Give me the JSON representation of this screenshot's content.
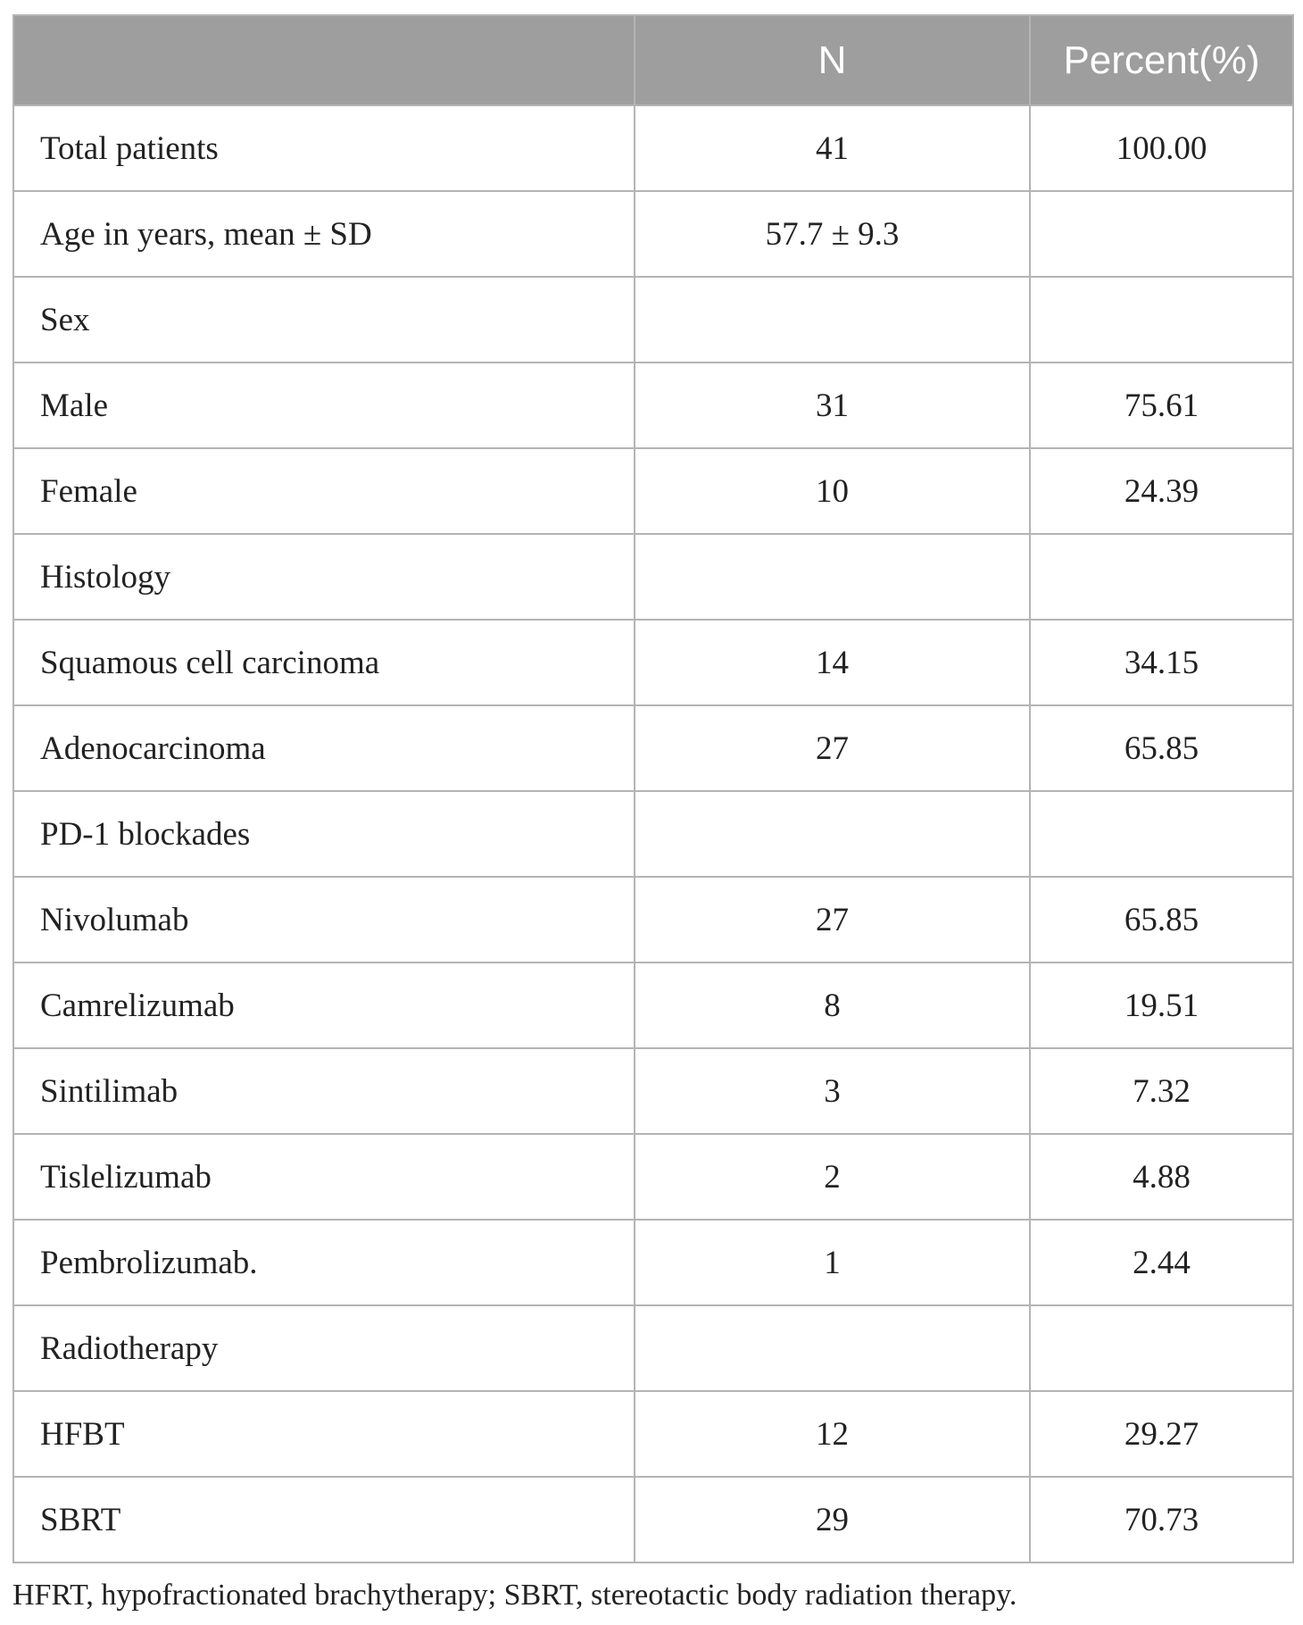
{
  "table": {
    "headers": [
      "",
      "N",
      "Percent(%)"
    ],
    "rows": [
      {
        "label": "Total patients",
        "n": "41",
        "percent": "100.00"
      },
      {
        "label": "Age in years, mean ± SD",
        "n": "57.7 ± 9.3",
        "percent": ""
      },
      {
        "label": "Sex",
        "n": "",
        "percent": ""
      },
      {
        "label": "Male",
        "n": "31",
        "percent": "75.61"
      },
      {
        "label": "Female",
        "n": "10",
        "percent": "24.39"
      },
      {
        "label": "Histology",
        "n": "",
        "percent": ""
      },
      {
        "label": "Squamous cell carcinoma",
        "n": "14",
        "percent": "34.15"
      },
      {
        "label": "Adenocarcinoma",
        "n": "27",
        "percent": "65.85"
      },
      {
        "label": "PD-1 blockades",
        "n": "",
        "percent": ""
      },
      {
        "label": "Nivolumab",
        "n": "27",
        "percent": "65.85"
      },
      {
        "label": "Camrelizumab",
        "n": "8",
        "percent": "19.51"
      },
      {
        "label": "Sintilimab",
        "n": "3",
        "percent": "7.32"
      },
      {
        "label": "Tislelizumab",
        "n": "2",
        "percent": "4.88"
      },
      {
        "label": "Pembrolizumab.",
        "n": "1",
        "percent": "2.44"
      },
      {
        "label": "Radiotherapy",
        "n": "",
        "percent": ""
      },
      {
        "label": "HFBT",
        "n": "12",
        "percent": "29.27"
      },
      {
        "label": "SBRT",
        "n": "29",
        "percent": "70.73"
      }
    ]
  },
  "footnote": "HFRT, hypofractionated brachytherapy; SBRT, stereotactic body radiation therapy."
}
